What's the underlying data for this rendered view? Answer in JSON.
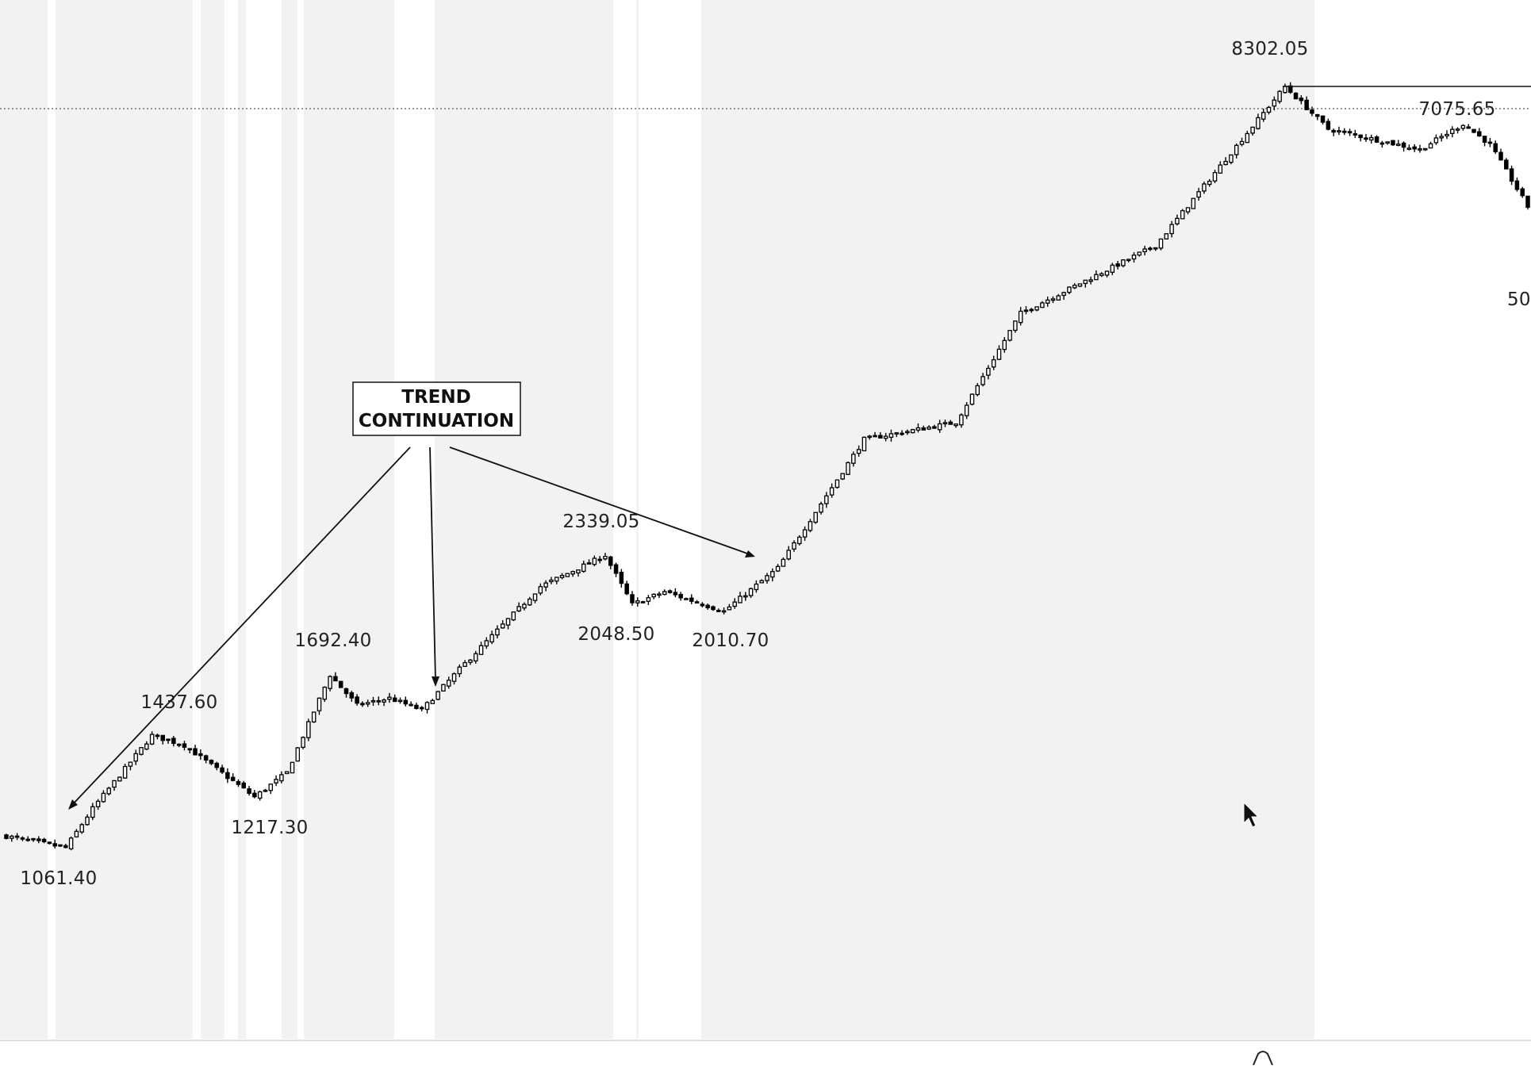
{
  "chart_data": {
    "type": "candlestick",
    "price_labels": [
      {
        "value": 8302.05,
        "text": "8302.05",
        "kind": "high"
      },
      {
        "value": 7075.65,
        "text": "7075.65",
        "kind": "level"
      },
      {
        "value": 2339.05,
        "text": "2339.05",
        "kind": "high"
      },
      {
        "value": 2048.5,
        "text": "2048.50",
        "kind": "low"
      },
      {
        "value": 2010.7,
        "text": "2010.70",
        "kind": "low"
      },
      {
        "value": 1692.4,
        "text": "1692.40",
        "kind": "high"
      },
      {
        "value": 1437.6,
        "text": "1437.60",
        "kind": "high"
      },
      {
        "value": 1217.3,
        "text": "1217.30",
        "kind": "low"
      },
      {
        "value": 1061.4,
        "text": "1061.40",
        "kind": "low"
      },
      {
        "value": 50,
        "text": "50",
        "kind": "cut-off"
      }
    ],
    "annotation": {
      "lines": [
        "TREND",
        "CONTINUATION"
      ],
      "arrow_count": 3
    },
    "reference_line": {
      "value": 7075.65,
      "style": "dotted"
    }
  },
  "colors": {
    "background": "#ffffff",
    "band": "#f2f2f2",
    "candle": "#000000"
  },
  "icons": [
    "mouse-cursor-icon"
  ]
}
